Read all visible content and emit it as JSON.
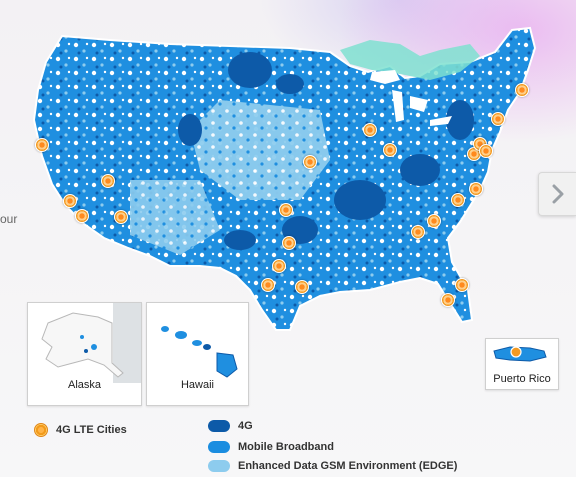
{
  "side_text": "our",
  "colors": {
    "lte_4g": "#0d5aa8",
    "mobile_broadband": "#1b8de0",
    "edge": "#8dccee",
    "map_white": "#ffffff",
    "city_marker": "#f39a22"
  },
  "insets": {
    "alaska": "Alaska",
    "hawaii": "Hawaii",
    "puerto_rico": "Puerto Rico"
  },
  "legend": {
    "cities": "4G LTE Cities",
    "g4": "4G",
    "broadband": "Mobile Broadband",
    "edge": "Enhanced Data GSM Environment (EDGE)"
  },
  "icons": {
    "next": "chevron-right-icon",
    "city": "lte-city-marker-icon"
  }
}
